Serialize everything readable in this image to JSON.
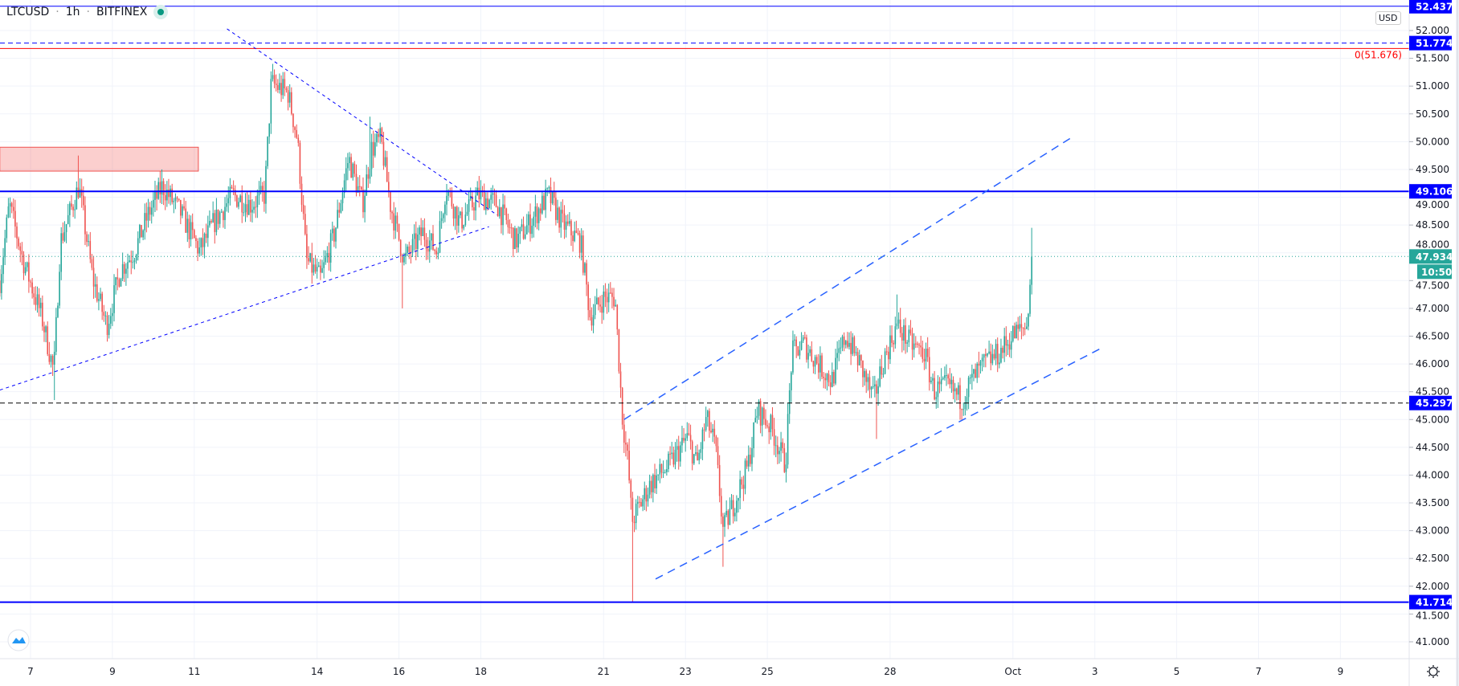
{
  "header": {
    "symbol": "LTCUSD",
    "interval": "1h",
    "exchange": "BITFINEX",
    "separator": "·",
    "status_color": "#089981"
  },
  "currency_button": "USD",
  "colors": {
    "up": "#26a69a",
    "down": "#ef5350",
    "line_blue": "#0000ff",
    "channel_blue": "#2962ff",
    "fib_red": "#ff0000",
    "last_price_bg": "#26a69a",
    "grid": "#f0f3fa"
  },
  "chart_data": {
    "type": "candlestick",
    "title": "",
    "x_unit": "day of September (hourly candles)",
    "y_ticks": [
      "41.000",
      "41.500",
      "42.000",
      "42.500",
      "43.000",
      "43.500",
      "44.000",
      "44.500",
      "45.000",
      "45.500",
      "46.000",
      "46.500",
      "47.000",
      "47.500",
      "48.000",
      "48.500",
      "49.000",
      "49.500",
      "50.000",
      "50.500",
      "51.000",
      "51.500",
      "52.000"
    ],
    "ylim": [
      40.6,
      52.45
    ],
    "x_ticks": [
      {
        "label": "7",
        "day": 7
      },
      {
        "label": "9",
        "day": 9
      },
      {
        "label": "11",
        "day": 11
      },
      {
        "label": "14",
        "day": 14
      },
      {
        "label": "16",
        "day": 16
      },
      {
        "label": "18",
        "day": 18
      },
      {
        "label": "21",
        "day": 21
      },
      {
        "label": "23",
        "day": 23
      },
      {
        "label": "25",
        "day": 25
      },
      {
        "label": "28",
        "day": 28
      },
      {
        "label": "Oct",
        "day": 31
      },
      {
        "label": "3",
        "day": 33
      },
      {
        "label": "5",
        "day": 35
      },
      {
        "label": "7",
        "day": 37
      },
      {
        "label": "9",
        "day": 39
      }
    ],
    "xlim": [
      6.25,
      40.7
    ],
    "grid": true,
    "close_path": [
      [
        6.25,
        47.5
      ],
      [
        6.48,
        48.87
      ],
      [
        6.82,
        47.86
      ],
      [
        7.27,
        46.86
      ],
      [
        7.57,
        45.85
      ],
      [
        7.73,
        48.2
      ],
      [
        8.18,
        49.2
      ],
      [
        8.52,
        47.53
      ],
      [
        8.86,
        46.69
      ],
      [
        9.2,
        47.7
      ],
      [
        9.54,
        48.03
      ],
      [
        9.88,
        48.7
      ],
      [
        10.22,
        49.2
      ],
      [
        10.68,
        48.7
      ],
      [
        11.13,
        48.03
      ],
      [
        11.47,
        48.53
      ],
      [
        11.93,
        49.04
      ],
      [
        12.38,
        48.87
      ],
      [
        12.72,
        49.04
      ],
      [
        12.88,
        51.05
      ],
      [
        13.29,
        50.88
      ],
      [
        13.52,
        50.04
      ],
      [
        13.74,
        47.86
      ],
      [
        14.08,
        47.53
      ],
      [
        14.43,
        48.37
      ],
      [
        14.77,
        49.71
      ],
      [
        15.11,
        48.87
      ],
      [
        15.33,
        49.87
      ],
      [
        15.56,
        50.04
      ],
      [
        15.79,
        48.87
      ],
      [
        16.13,
        47.86
      ],
      [
        16.58,
        48.37
      ],
      [
        16.92,
        48.03
      ],
      [
        17.15,
        49.2
      ],
      [
        17.49,
        48.53
      ],
      [
        17.94,
        49.04
      ],
      [
        18.4,
        48.87
      ],
      [
        18.85,
        48.2
      ],
      [
        19.19,
        48.53
      ],
      [
        19.65,
        49.04
      ],
      [
        19.99,
        48.53
      ],
      [
        20.44,
        48.2
      ],
      [
        20.67,
        46.86
      ],
      [
        21.01,
        47.19
      ],
      [
        21.28,
        47.19
      ],
      [
        21.46,
        45.02
      ],
      [
        21.6,
        44.18
      ],
      [
        21.69,
        43.17
      ],
      [
        21.92,
        43.51
      ],
      [
        22.14,
        43.84
      ],
      [
        22.6,
        44.18
      ],
      [
        23.05,
        44.68
      ],
      [
        23.28,
        44.18
      ],
      [
        23.51,
        45.02
      ],
      [
        23.73,
        44.51
      ],
      [
        23.92,
        43.0
      ],
      [
        24.19,
        43.51
      ],
      [
        24.53,
        44.18
      ],
      [
        24.76,
        45.18
      ],
      [
        25.1,
        44.85
      ],
      [
        25.44,
        44.18
      ],
      [
        25.6,
        46.19
      ],
      [
        25.89,
        46.36
      ],
      [
        26.23,
        46.02
      ],
      [
        26.57,
        45.69
      ],
      [
        26.91,
        46.52
      ],
      [
        27.25,
        46.02
      ],
      [
        27.6,
        45.35
      ],
      [
        27.82,
        46.02
      ],
      [
        28.16,
        46.69
      ],
      [
        28.5,
        46.36
      ],
      [
        28.84,
        46.19
      ],
      [
        29.07,
        45.52
      ],
      [
        29.41,
        45.6
      ],
      [
        29.75,
        45.35
      ],
      [
        29.98,
        45.69
      ],
      [
        30.32,
        46.02
      ],
      [
        30.66,
        46.19
      ],
      [
        31.0,
        46.52
      ],
      [
        31.34,
        46.69
      ],
      [
        31.46,
        47.93
      ]
    ],
    "notable_wicks": [
      {
        "day": 7.57,
        "low": 45.35
      },
      {
        "day": 8.15,
        "high": 49.75
      },
      {
        "day": 12.9,
        "high": 51.4
      },
      {
        "day": 15.3,
        "high": 50.45
      },
      {
        "day": 16.1,
        "low": 47.0
      },
      {
        "day": 21.69,
        "low": 41.714
      },
      {
        "day": 23.92,
        "low": 42.35
      },
      {
        "day": 27.65,
        "low": 44.65
      },
      {
        "day": 28.15,
        "high": 47.25
      },
      {
        "day": 31.46,
        "high": 48.45
      }
    ],
    "last_price": "47.934",
    "countdown": "10:50"
  },
  "drawings": {
    "horizontal_lines": [
      {
        "price": 52.437,
        "label": "52.437",
        "style": "solid",
        "color": "#0000ff"
      },
      {
        "price": 51.774,
        "label": "51.774",
        "style": "dashed",
        "color": "#0000ff"
      },
      {
        "price": 49.106,
        "label": "49.106",
        "style": "solid",
        "color": "#0000ff"
      },
      {
        "price": 45.297,
        "label": "45.297",
        "style": "dashed",
        "color": "#000000"
      },
      {
        "price": 41.714,
        "label": "41.714",
        "style": "solid",
        "color": "#0000ff"
      }
    ],
    "fib_line": {
      "price": 51.676,
      "label": "0(51.676)",
      "color": "#ff0000"
    },
    "zone": {
      "from_day": 6.25,
      "to_day": 11.1,
      "price_top": 49.9,
      "price_bottom": 49.47,
      "color": "#ef5350"
    },
    "trendlines": [
      {
        "name": "descending",
        "from": [
          11.8,
          52.03
        ],
        "to": [
          18.4,
          48.68
        ],
        "style": "dotted"
      },
      {
        "name": "ascending",
        "from": [
          6.25,
          45.53
        ],
        "to": [
          18.2,
          48.47
        ],
        "style": "dotted"
      },
      {
        "name": "channel-top",
        "from": [
          21.5,
          45.0
        ],
        "to": [
          32.4,
          50.06
        ],
        "style": "dashed"
      },
      {
        "name": "channel-bottom",
        "from": [
          22.27,
          42.13
        ],
        "to": [
          33.2,
          46.3
        ],
        "style": "dashed"
      }
    ]
  }
}
